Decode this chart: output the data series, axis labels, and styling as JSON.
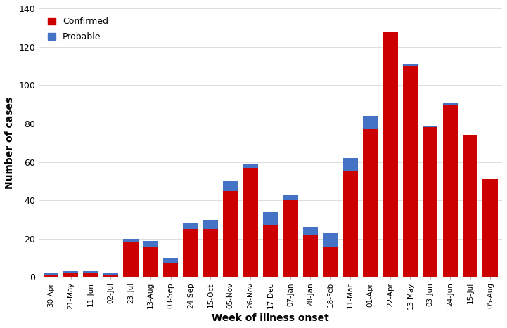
{
  "weeks": [
    "30-Apr",
    "21-May",
    "11-Jun",
    "02-Jul",
    "23-Jul",
    "13-Aug",
    "03-Sep",
    "24-Sep",
    "15-Oct",
    "05-Nov",
    "26-Nov",
    "17-Dec",
    "07-Jan",
    "28-Jan",
    "18-Feb",
    "11-Mar",
    "01-Apr",
    "22-Apr",
    "13-May",
    "03-Jun",
    "24-Jun",
    "15-Jul",
    "05-Aug"
  ],
  "confirmed": [
    1,
    2,
    2,
    1,
    18,
    16,
    7,
    25,
    25,
    45,
    57,
    27,
    40,
    22,
    16,
    55,
    77,
    128,
    110,
    78,
    90,
    74,
    51
  ],
  "probable": [
    1,
    1,
    1,
    1,
    2,
    3,
    3,
    3,
    5,
    5,
    2,
    7,
    3,
    4,
    7,
    7,
    7,
    0,
    1,
    1,
    1,
    0,
    0
  ],
  "confirmed_color": "#cc0000",
  "probable_color": "#4472c4",
  "ylabel": "Number of cases",
  "xlabel": "Week of illness onset",
  "ylim": [
    0,
    140
  ],
  "yticks": [
    0,
    20,
    40,
    60,
    80,
    100,
    120,
    140
  ],
  "legend_confirmed": "Confirmed",
  "legend_probable": "Probable",
  "background_color": "#ffffff"
}
